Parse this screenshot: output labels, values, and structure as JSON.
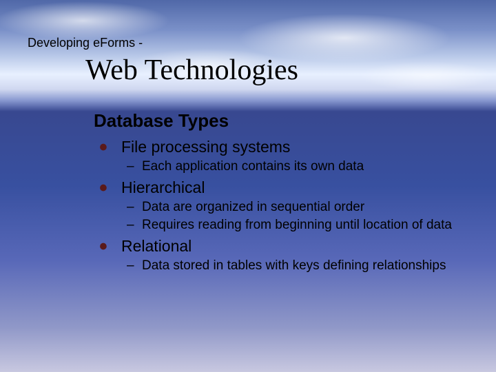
{
  "slide": {
    "header": "Developing eForms -",
    "title": "Web Technologies",
    "subtitle": "Database Types",
    "items": [
      {
        "label": "File processing systems",
        "subs": [
          "Each application contains its own data"
        ]
      },
      {
        "label": "Hierarchical",
        "subs": [
          "Data are organized in sequential order",
          "Requires reading from beginning until location of data"
        ]
      },
      {
        "label": "Relational",
        "subs": [
          "Data stored in tables with keys defining relationships"
        ]
      }
    ]
  },
  "style": {
    "bullet_color": "#5a1a1a",
    "text_color": "#000000",
    "title_font": "Georgia",
    "body_font": "Verdana",
    "title_fontsize": 42,
    "subtitle_fontsize": 26,
    "l1_fontsize": 23,
    "l2_fontsize": 19,
    "background_gradient": [
      "#5068a8",
      "#7a90c8",
      "#b8c8e8",
      "#e8f0ff",
      "#8898d0",
      "#384890",
      "#5868b8",
      "#c8c8e0"
    ]
  }
}
